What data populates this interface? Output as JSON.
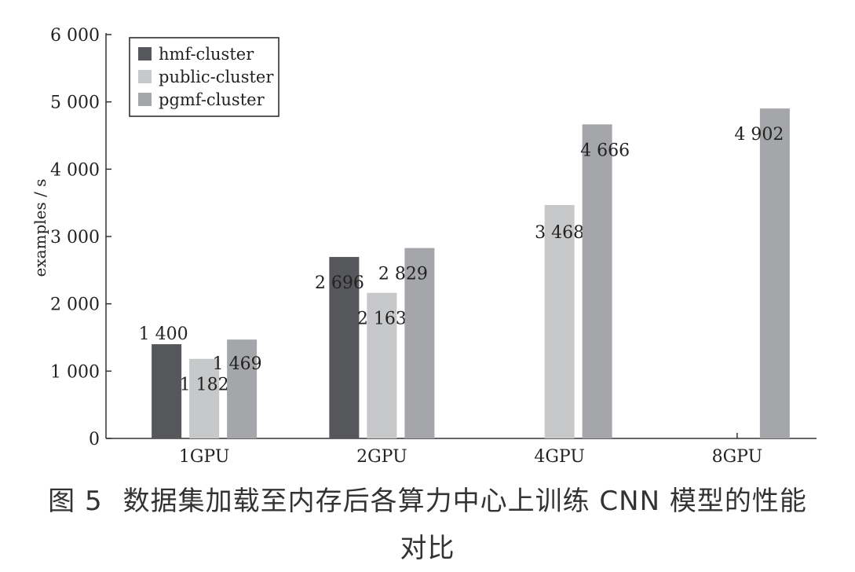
{
  "chart_data": {
    "type": "bar",
    "title": "",
    "xlabel": "",
    "ylabel": "examples / s",
    "ylim": [
      0,
      6000
    ],
    "yticks": [
      0,
      1000,
      2000,
      3000,
      4000,
      5000,
      6000
    ],
    "ytick_labels": [
      "0",
      "1 000",
      "2 000",
      "3 000",
      "4 000",
      "5 000",
      "6 000"
    ],
    "categories": [
      "1GPU",
      "2GPU",
      "4GPU",
      "8GPU"
    ],
    "grid": false,
    "legend_position": "top-left",
    "series": [
      {
        "name": "hmf-cluster",
        "color": "#55575a",
        "values": [
          1400,
          2696,
          null,
          null
        ],
        "labels": [
          "1 400",
          "2 696",
          "",
          ""
        ]
      },
      {
        "name": "public-cluster",
        "color": "#c6c8ca",
        "values": [
          1182,
          2163,
          3468,
          null
        ],
        "labels": [
          "1 182",
          "2 163",
          "3 468",
          ""
        ]
      },
      {
        "name": "pgmf-cluster",
        "color": "#a4a6a9",
        "values": [
          1469,
          2829,
          4666,
          4902
        ],
        "labels": [
          "1 469",
          "2 829",
          "4 666",
          "4 902"
        ]
      }
    ]
  },
  "caption": {
    "figure_number": "图 5",
    "line1": "数据集加载至内存后各算力中心上训练 CNN 模型的性能",
    "line2": "对比"
  }
}
